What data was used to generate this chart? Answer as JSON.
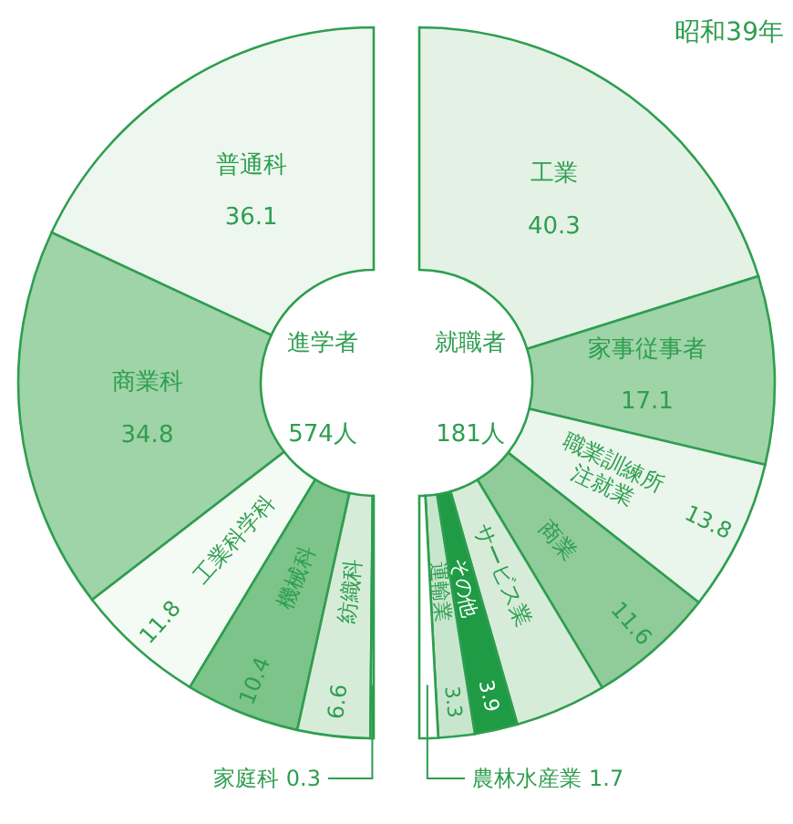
{
  "chart_data": [
    {
      "type": "donut",
      "title": "進学者",
      "subtitle": "574人",
      "categories": [
        "普通科",
        "商業科",
        "工業科学科",
        "機械科",
        "紡織科",
        "家庭科"
      ],
      "values": [
        36.1,
        34.8,
        11.8,
        10.4,
        6.6,
        0.3
      ],
      "colors": [
        "#eef7ef",
        "#9fd3a8",
        "#f4faf4",
        "#7cc48a",
        "#d6ecd9",
        "#ffffff"
      ],
      "data_labels": true
    },
    {
      "type": "donut",
      "title": "就職者",
      "subtitle": "181人",
      "categories": [
        "工業",
        "家事従事者",
        "職業訓練所\n注就業",
        "商業",
        "サービス業",
        "その他",
        "運輸業",
        "農林水産業"
      ],
      "values": [
        40.3,
        17.1,
        13.8,
        11.6,
        8.3,
        3.9,
        3.3,
        1.7
      ],
      "colors": [
        "#e3f2e5",
        "#9fd3a8",
        "#eaf5ec",
        "#8fcc9a",
        "#d6ecd9",
        "#1f9a45",
        "#c8e6cd",
        "#ffffff"
      ],
      "value_labels": [
        "40.3",
        "17.1",
        "13.8",
        "11.6",
        null,
        "3.9",
        "3.3",
        "1.7"
      ],
      "annotations": [
        "昭和39年"
      ]
    }
  ]
}
